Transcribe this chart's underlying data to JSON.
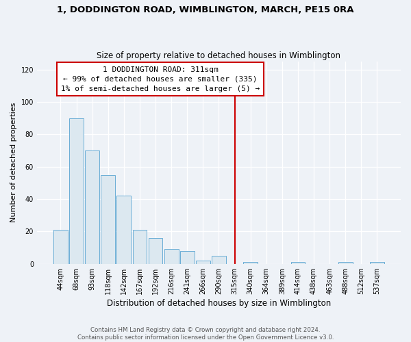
{
  "title": "1, DODDINGTON ROAD, WIMBLINGTON, MARCH, PE15 0RA",
  "subtitle": "Size of property relative to detached houses in Wimblington",
  "xlabel": "Distribution of detached houses by size in Wimblington",
  "ylabel": "Number of detached properties",
  "bar_labels": [
    "44sqm",
    "68sqm",
    "93sqm",
    "118sqm",
    "142sqm",
    "167sqm",
    "192sqm",
    "216sqm",
    "241sqm",
    "266sqm",
    "290sqm",
    "315sqm",
    "340sqm",
    "364sqm",
    "389sqm",
    "414sqm",
    "438sqm",
    "463sqm",
    "488sqm",
    "512sqm",
    "537sqm"
  ],
  "bar_values": [
    21,
    90,
    70,
    55,
    42,
    21,
    16,
    9,
    8,
    2,
    5,
    0,
    1,
    0,
    0,
    1,
    0,
    0,
    1,
    0,
    1
  ],
  "bar_color": "#dce8f0",
  "bar_edge_color": "#6baed6",
  "vline_x_index": 11,
  "vline_color": "#cc0000",
  "annotation_line1": "1 DODDINGTON ROAD: 311sqm",
  "annotation_line2": "← 99% of detached houses are smaller (335)",
  "annotation_line3": "1% of semi-detached houses are larger (5) →",
  "annotation_box_facecolor": "#ffffff",
  "annotation_box_edgecolor": "#cc0000",
  "ylim": [
    0,
    125
  ],
  "yticks": [
    0,
    20,
    40,
    60,
    80,
    100,
    120
  ],
  "footer_line1": "Contains HM Land Registry data © Crown copyright and database right 2024.",
  "footer_line2": "Contains public sector information licensed under the Open Government Licence v3.0.",
  "bg_color": "#eef2f7",
  "grid_color": "#ffffff",
  "title_fontsize": 9.5,
  "subtitle_fontsize": 8.5,
  "ylabel_fontsize": 8,
  "xlabel_fontsize": 8.5,
  "tick_fontsize": 7,
  "annotation_fontsize": 8,
  "footer_fontsize": 6.2
}
